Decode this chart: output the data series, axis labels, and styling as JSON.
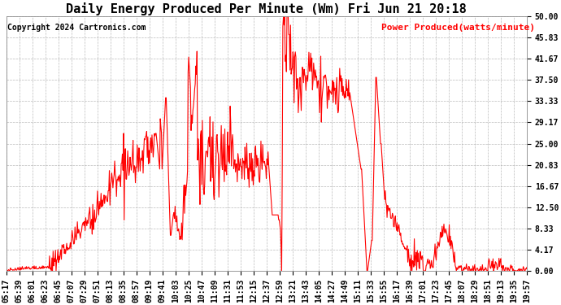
{
  "title": "Daily Energy Produced Per Minute (Wm) Fri Jun 21 20:18",
  "copyright": "Copyright 2024 Cartronics.com",
  "legend_label": "Power Produced(watts/minute)",
  "ylabel_color": "#ff0000",
  "line_color": "#ff0000",
  "background_color": "#ffffff",
  "grid_color": "#aaaaaa",
  "ylim": [
    0,
    50.0
  ],
  "yticks": [
    0.0,
    4.17,
    8.33,
    12.5,
    16.67,
    20.83,
    25.0,
    29.17,
    33.33,
    37.5,
    41.67,
    45.83,
    50.0
  ],
  "ytick_labels": [
    "0.00",
    "4.17",
    "8.33",
    "12.50",
    "16.67",
    "20.83",
    "25.00",
    "29.17",
    "33.33",
    "37.50",
    "41.67",
    "45.83",
    "50.00"
  ],
  "xtick_labels": [
    "05:17",
    "05:39",
    "06:01",
    "06:23",
    "06:45",
    "07:07",
    "07:29",
    "07:51",
    "08:13",
    "08:35",
    "08:57",
    "09:19",
    "09:41",
    "10:03",
    "10:25",
    "10:47",
    "11:09",
    "11:31",
    "11:53",
    "12:15",
    "12:37",
    "12:59",
    "13:21",
    "13:43",
    "14:05",
    "14:27",
    "14:49",
    "15:11",
    "15:33",
    "15:55",
    "16:17",
    "16:39",
    "17:01",
    "17:23",
    "17:45",
    "18:07",
    "18:29",
    "18:51",
    "19:13",
    "19:35",
    "19:57"
  ],
  "title_fontsize": 11,
  "copyright_fontsize": 7,
  "legend_fontsize": 8,
  "tick_fontsize": 7,
  "line_width": 0.8,
  "figsize": [
    6.9,
    3.75
  ],
  "dpi": 100
}
